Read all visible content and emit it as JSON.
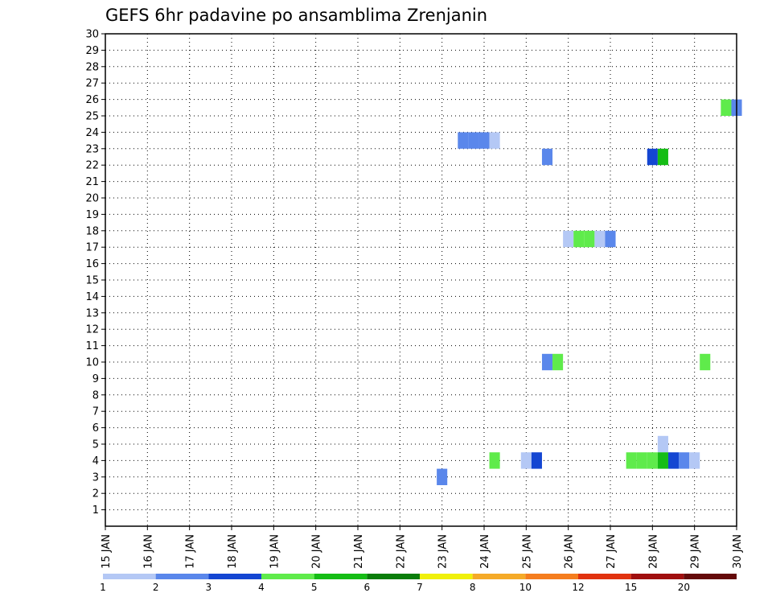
{
  "chart_data": {
    "type": "heatmap",
    "title": "GEFS 6hr padavine po ansamblima Zrenjanin",
    "xlabel": "",
    "ylabel": "",
    "x_ticks": [
      "15 JAN",
      "16 JAN",
      "17 JAN",
      "18 JAN",
      "19 JAN",
      "20 JAN",
      "21 JAN",
      "22 JAN",
      "23 JAN",
      "24 JAN",
      "25 JAN",
      "26 JAN",
      "27 JAN",
      "28 JAN",
      "29 JAN",
      "30 JAN"
    ],
    "x_range_days": [
      15,
      30
    ],
    "y_range": [
      0,
      30
    ],
    "y_ticks": [
      1,
      2,
      3,
      4,
      5,
      6,
      7,
      8,
      9,
      10,
      11,
      12,
      13,
      14,
      15,
      16,
      17,
      18,
      19,
      20,
      21,
      22,
      23,
      24,
      25,
      26,
      27,
      28,
      29,
      30
    ],
    "grid": true,
    "colorbar": {
      "levels": [
        "1",
        "2",
        "3",
        "4",
        "5",
        "6",
        "7",
        "8",
        "10",
        "12",
        "15",
        "20"
      ],
      "colors": [
        "#b4c8f5",
        "#5a87eb",
        "#1446d2",
        "#5feb4b",
        "#15bd15",
        "#0a7d0a",
        "#f0f00a",
        "#f5aa28",
        "#f57d1e",
        "#e1320f",
        "#a00f0f",
        "#640a0a"
      ]
    },
    "cells": [
      {
        "member": 23.5,
        "day": 23.5,
        "color": "#5a87eb"
      },
      {
        "member": 23.5,
        "day": 23.75,
        "color": "#5a87eb"
      },
      {
        "member": 23.5,
        "day": 24.0,
        "color": "#5a87eb"
      },
      {
        "member": 23.5,
        "day": 24.25,
        "color": "#b4c8f5"
      },
      {
        "member": 22.5,
        "day": 25.5,
        "color": "#5a87eb"
      },
      {
        "member": 22.5,
        "day": 28.0,
        "color": "#1446d2"
      },
      {
        "member": 22.5,
        "day": 28.25,
        "color": "#15bd15"
      },
      {
        "member": 25.5,
        "day": 29.75,
        "color": "#5feb4b"
      },
      {
        "member": 25.5,
        "day": 30.0,
        "color": "#5a87eb"
      },
      {
        "member": 17.5,
        "day": 26.0,
        "color": "#b4c8f5"
      },
      {
        "member": 17.5,
        "day": 26.25,
        "color": "#5feb4b"
      },
      {
        "member": 17.5,
        "day": 26.5,
        "color": "#5feb4b"
      },
      {
        "member": 17.5,
        "day": 26.75,
        "color": "#b4c8f5"
      },
      {
        "member": 17.5,
        "day": 27.0,
        "color": "#5a87eb"
      },
      {
        "member": 10.0,
        "day": 25.5,
        "color": "#5a87eb"
      },
      {
        "member": 10.0,
        "day": 25.75,
        "color": "#5feb4b"
      },
      {
        "member": 10.0,
        "day": 29.25,
        "color": "#5feb4b"
      },
      {
        "member": 5.0,
        "day": 28.25,
        "color": "#b4c8f5"
      },
      {
        "member": 4.0,
        "day": 24.25,
        "color": "#5feb4b"
      },
      {
        "member": 4.0,
        "day": 25.0,
        "color": "#b4c8f5"
      },
      {
        "member": 4.0,
        "day": 25.25,
        "color": "#1446d2"
      },
      {
        "member": 4.0,
        "day": 27.5,
        "color": "#5feb4b"
      },
      {
        "member": 4.0,
        "day": 27.75,
        "color": "#5feb4b"
      },
      {
        "member": 4.0,
        "day": 28.0,
        "color": "#5feb4b"
      },
      {
        "member": 4.0,
        "day": 28.25,
        "color": "#15bd15"
      },
      {
        "member": 4.0,
        "day": 28.5,
        "color": "#1446d2"
      },
      {
        "member": 4.0,
        "day": 28.75,
        "color": "#5a87eb"
      },
      {
        "member": 4.0,
        "day": 29.0,
        "color": "#b4c8f5"
      },
      {
        "member": 3.0,
        "day": 23.0,
        "color": "#5a87eb"
      }
    ]
  }
}
